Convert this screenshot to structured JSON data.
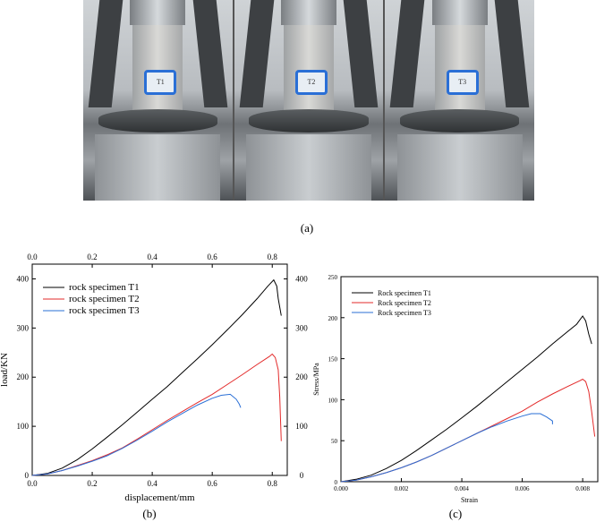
{
  "figure": {
    "caption_a": "(a)",
    "caption_b": "(b)",
    "caption_c": "(c)"
  },
  "photos": [
    {
      "tag": "T1"
    },
    {
      "tag": "T2"
    },
    {
      "tag": "T3"
    }
  ],
  "chart_data": [
    {
      "id": "b",
      "type": "line",
      "xlabel": "displacement/mm",
      "ylabel": "load/KN",
      "xlim": [
        0,
        0.85
      ],
      "ylim": [
        0,
        430
      ],
      "x_ticks": [
        "0.0",
        "0.2",
        "0.4",
        "0.6",
        "0.8"
      ],
      "y_ticks": [
        "0",
        "100",
        "200",
        "300",
        "400"
      ],
      "top_axis_ticks": [
        "0.0",
        "0.2",
        "0.4",
        "0.6",
        "0.8"
      ],
      "right_axis_ticks": [
        "0",
        "100",
        "200",
        "300",
        "400"
      ],
      "legend_position": "top-left",
      "series": [
        {
          "name": "rock specimen T1",
          "color": "#000000",
          "points": [
            [
              0,
              0
            ],
            [
              0.05,
              4
            ],
            [
              0.1,
              15
            ],
            [
              0.15,
              32
            ],
            [
              0.2,
              54
            ],
            [
              0.25,
              78
            ],
            [
              0.3,
              103
            ],
            [
              0.35,
              129
            ],
            [
              0.4,
              155
            ],
            [
              0.45,
              181
            ],
            [
              0.5,
              209
            ],
            [
              0.55,
              237
            ],
            [
              0.6,
              266
            ],
            [
              0.65,
              296
            ],
            [
              0.7,
              327
            ],
            [
              0.75,
              360
            ],
            [
              0.785,
              385
            ],
            [
              0.805,
              398
            ],
            [
              0.815,
              385
            ],
            [
              0.82,
              360
            ],
            [
              0.83,
              325
            ]
          ]
        },
        {
          "name": "rock specimen T2",
          "color": "#e32a2a",
          "points": [
            [
              0,
              0
            ],
            [
              0.05,
              3
            ],
            [
              0.1,
              10
            ],
            [
              0.15,
              20
            ],
            [
              0.2,
              30
            ],
            [
              0.25,
              42
            ],
            [
              0.3,
              56
            ],
            [
              0.35,
              74
            ],
            [
              0.4,
              93
            ],
            [
              0.45,
              112
            ],
            [
              0.5,
              130
            ],
            [
              0.55,
              148
            ],
            [
              0.6,
              165
            ],
            [
              0.65,
              185
            ],
            [
              0.7,
              205
            ],
            [
              0.75,
              226
            ],
            [
              0.79,
              242
            ],
            [
              0.8,
              247
            ],
            [
              0.81,
              240
            ],
            [
              0.82,
              215
            ],
            [
              0.825,
              160
            ],
            [
              0.83,
              70
            ]
          ]
        },
        {
          "name": "rock specimen T3",
          "color": "#2a6fd6",
          "points": [
            [
              0,
              0
            ],
            [
              0.05,
              3
            ],
            [
              0.1,
              10
            ],
            [
              0.15,
              19
            ],
            [
              0.2,
              29
            ],
            [
              0.25,
              40
            ],
            [
              0.3,
              55
            ],
            [
              0.35,
              72
            ],
            [
              0.4,
              90
            ],
            [
              0.45,
              109
            ],
            [
              0.5,
              126
            ],
            [
              0.55,
              143
            ],
            [
              0.6,
              157
            ],
            [
              0.63,
              163
            ],
            [
              0.66,
              165
            ],
            [
              0.68,
              155
            ],
            [
              0.69,
              145
            ],
            [
              0.695,
              138
            ]
          ]
        }
      ]
    },
    {
      "id": "c",
      "type": "line",
      "xlabel": "Strain",
      "ylabel": "Stress/MPa",
      "xlim": [
        0,
        0.0085
      ],
      "ylim": [
        0,
        250
      ],
      "x_ticks": [
        "0.000",
        "0.002",
        "0.004",
        "0.006",
        "0.008"
      ],
      "y_ticks": [
        "0",
        "50",
        "100",
        "150",
        "200",
        "250"
      ],
      "legend_position": "top-left",
      "series": [
        {
          "name": "Rock specimen T1",
          "color": "#000000",
          "points": [
            [
              0,
              0
            ],
            [
              0.0005,
              3
            ],
            [
              0.001,
              8
            ],
            [
              0.0015,
              16
            ],
            [
              0.002,
              26
            ],
            [
              0.0025,
              38
            ],
            [
              0.003,
              51
            ],
            [
              0.0035,
              64
            ],
            [
              0.004,
              78
            ],
            [
              0.0045,
              92
            ],
            [
              0.005,
              107
            ],
            [
              0.0055,
              122
            ],
            [
              0.006,
              137
            ],
            [
              0.0065,
              152
            ],
            [
              0.007,
              168
            ],
            [
              0.0075,
              183
            ],
            [
              0.0078,
              192
            ],
            [
              0.008,
              202
            ],
            [
              0.0081,
              196
            ],
            [
              0.0082,
              180
            ],
            [
              0.0083,
              168
            ]
          ]
        },
        {
          "name": "Rock specimen T2",
          "color": "#e32a2a",
          "points": [
            [
              0,
              0
            ],
            [
              0.0005,
              2
            ],
            [
              0.001,
              6
            ],
            [
              0.0015,
              11
            ],
            [
              0.002,
              17
            ],
            [
              0.0025,
              24
            ],
            [
              0.003,
              32
            ],
            [
              0.0035,
              41
            ],
            [
              0.004,
              50
            ],
            [
              0.0045,
              59
            ],
            [
              0.005,
              68
            ],
            [
              0.0055,
              77
            ],
            [
              0.006,
              86
            ],
            [
              0.0065,
              97
            ],
            [
              0.007,
              107
            ],
            [
              0.0075,
              116
            ],
            [
              0.0079,
              123
            ],
            [
              0.008,
              125
            ],
            [
              0.0081,
              122
            ],
            [
              0.0082,
              110
            ],
            [
              0.0083,
              85
            ],
            [
              0.0084,
              55
            ]
          ]
        },
        {
          "name": "Rock specimen T3",
          "color": "#2a6fd6",
          "points": [
            [
              0,
              0
            ],
            [
              0.0005,
              2
            ],
            [
              0.001,
              6
            ],
            [
              0.0015,
              11
            ],
            [
              0.002,
              17
            ],
            [
              0.0025,
              24
            ],
            [
              0.003,
              32
            ],
            [
              0.0035,
              41
            ],
            [
              0.004,
              50
            ],
            [
              0.0045,
              59
            ],
            [
              0.005,
              67
            ],
            [
              0.0055,
              74
            ],
            [
              0.006,
              80
            ],
            [
              0.0063,
              83
            ],
            [
              0.0066,
              83
            ],
            [
              0.0068,
              79
            ],
            [
              0.007,
              74
            ],
            [
              0.007,
              70
            ]
          ]
        }
      ]
    }
  ]
}
